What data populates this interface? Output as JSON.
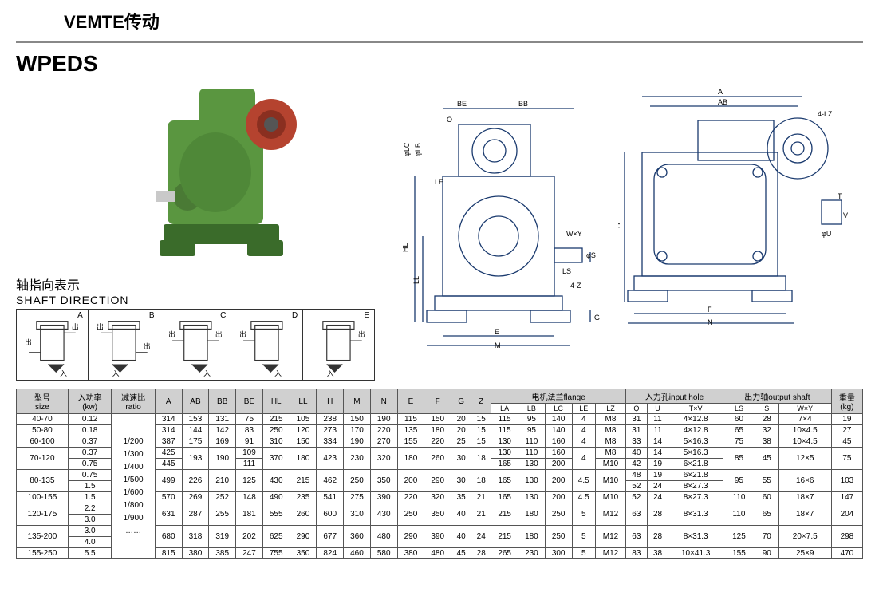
{
  "brand": "VEMTE传动",
  "model": "WPEDS",
  "shaft": {
    "label_cn": "轴指向表示",
    "label_en": "SHAFT DIRECTION",
    "letters": [
      "A",
      "B",
      "C",
      "D",
      "E"
    ],
    "in": "入",
    "out": "出"
  },
  "product_colors": {
    "body": "#5a9640",
    "flange": "#b5432f",
    "shaft": "#c9c9c9",
    "base": "#3a6b2a"
  },
  "diagram": {
    "labels_front": [
      "BE",
      "BB",
      "O",
      "φLC",
      "φLB",
      "LE",
      "HL",
      "LL",
      "W×Y",
      "LS",
      "φS",
      "4-Z",
      "G",
      "E",
      "M"
    ],
    "labels_side": [
      "A",
      "AB",
      "4-LZ",
      "H",
      "T",
      "V",
      "φU",
      "F",
      "N"
    ],
    "line_color": "#1a3a6e"
  },
  "table": {
    "headers_top": {
      "size": "型号\nsize",
      "power": "入功率\n(kw)",
      "ratio": "减速比\nratio",
      "dims": [
        "A",
        "AB",
        "BB",
        "BE",
        "HL",
        "LL",
        "H",
        "M",
        "N",
        "E",
        "F",
        "G",
        "Z"
      ],
      "flange_group": "电机法兰flange",
      "flange": [
        "LA",
        "LB",
        "LC",
        "LE",
        "LZ"
      ],
      "input_group": "入力孔input hole",
      "input": [
        "Q",
        "U",
        "T×V"
      ],
      "output_group": "出力轴output shaft",
      "output": [
        "LS",
        "S",
        "W×Y"
      ],
      "weight": "重量\n(kg)"
    },
    "ratio_block": "1/200\n1/300\n1/400\n1/500\n1/600\n1/800\n1/900\n……",
    "rows": [
      {
        "size": "40-70",
        "kw": "0.12",
        "A": "314",
        "AB": "153",
        "BB": "131",
        "BE": "75",
        "HL": "215",
        "LL": "105",
        "H": "238",
        "M": "150",
        "N": "190",
        "E": "115",
        "F": "150",
        "G": "20",
        "Z": "15",
        "LA": "115",
        "LB": "95",
        "LC": "140",
        "LE": "4",
        "LZ": "M8",
        "Q": "31",
        "U": "11",
        "TV": "4×12.8",
        "LS": "60",
        "S": "28",
        "WY": "7×4",
        "kg": "19"
      },
      {
        "size": "50-80",
        "kw": "0.18",
        "A": "314",
        "AB": "144",
        "BB": "142",
        "BE": "83",
        "HL": "250",
        "LL": "120",
        "H": "273",
        "M": "170",
        "N": "220",
        "E": "135",
        "F": "180",
        "G": "20",
        "Z": "15",
        "LA": "115",
        "LB": "95",
        "LC": "140",
        "LE": "4",
        "LZ": "M8",
        "Q": "31",
        "U": "11",
        "TV": "4×12.8",
        "LS": "65",
        "S": "32",
        "WY": "10×4.5",
        "kg": "27"
      },
      {
        "size": "60-100",
        "kw": "0.37",
        "A": "387",
        "AB": "175",
        "BB": "169",
        "BE": "91",
        "HL": "310",
        "LL": "150",
        "H": "334",
        "M": "190",
        "N": "270",
        "E": "155",
        "F": "220",
        "G": "25",
        "Z": "15",
        "LA": "130",
        "LB": "110",
        "LC": "160",
        "LE": "4",
        "LZ": "M8",
        "Q": "33",
        "U": "14",
        "TV": "5×16.3",
        "LS": "75",
        "S": "38",
        "WY": "10×4.5",
        "kg": "45"
      }
    ],
    "row_70_120": {
      "size": "70-120",
      "kw1": "0.37",
      "kw2": "0.75",
      "A1": "425",
      "A2": "445",
      "AB": "193",
      "BB": "190",
      "BE1": "109",
      "BE2": "111",
      "HL": "370",
      "LL": "180",
      "H": "423",
      "M": "230",
      "N": "320",
      "E": "180",
      "F": "260",
      "G": "30",
      "Z": "18",
      "LA1": "130",
      "LA2": "165",
      "LB1": "110",
      "LB2": "130",
      "LC1": "160",
      "LC2": "200",
      "LE": "4",
      "LZ1": "M8",
      "LZ2": "M10",
      "Q1": "40",
      "Q2": "42",
      "U1": "14",
      "U2": "19",
      "TV1": "5×16.3",
      "TV2": "6×21.8",
      "LS": "85",
      "S": "45",
      "WY": "12×5",
      "kg": "75"
    },
    "row_80_135": {
      "size": "80-135",
      "kw1": "0.75",
      "kw2": "1.5",
      "A": "499",
      "AB": "226",
      "BB": "210",
      "BE": "125",
      "HL": "430",
      "LL": "215",
      "H": "462",
      "M": "250",
      "N": "350",
      "E": "200",
      "F": "290",
      "G": "30",
      "Z": "18",
      "LA": "165",
      "LB": "130",
      "LC": "200",
      "LE": "4.5",
      "LZ": "M10",
      "Q1": "48",
      "Q2": "52",
      "U1": "19",
      "U2": "24",
      "TV1": "6×21.8",
      "TV2": "8×27.3",
      "LS": "95",
      "S": "55",
      "WY": "16×6",
      "kg": "103"
    },
    "row_100_155": {
      "size": "100-155",
      "kw": "1.5",
      "A": "570",
      "AB": "269",
      "BB": "252",
      "BE": "148",
      "HL": "490",
      "LL": "235",
      "H": "541",
      "M": "275",
      "N": "390",
      "E": "220",
      "F": "320",
      "G": "35",
      "Z": "21",
      "LA": "165",
      "LB": "130",
      "LC": "200",
      "LE": "4.5",
      "LZ": "M10",
      "Q": "52",
      "U": "24",
      "TV": "8×27.3",
      "LS": "110",
      "S": "60",
      "WY": "18×7",
      "kg": "147"
    },
    "row_120_175": {
      "size": "120-175",
      "kw1": "2.2",
      "kw2": "3.0",
      "A": "631",
      "AB": "287",
      "BB": "255",
      "BE": "181",
      "HL": "555",
      "LL": "260",
      "H": "600",
      "M": "310",
      "N": "430",
      "E": "250",
      "F": "350",
      "G": "40",
      "Z": "21",
      "LA": "215",
      "LB": "180",
      "LC": "250",
      "LE": "5",
      "LZ": "M12",
      "Q": "63",
      "U": "28",
      "TV": "8×31.3",
      "LS": "110",
      "S": "65",
      "WY": "18×7",
      "kg": "204"
    },
    "row_135_200": {
      "size": "135-200",
      "kw1": "3.0",
      "kw2": "4.0",
      "A": "680",
      "AB": "318",
      "BB": "319",
      "BE": "202",
      "HL": "625",
      "LL": "290",
      "H": "677",
      "M": "360",
      "N": "480",
      "E": "290",
      "F": "390",
      "G": "40",
      "Z": "24",
      "LA": "215",
      "LB": "180",
      "LC": "250",
      "LE": "5",
      "LZ": "M12",
      "Q": "63",
      "U": "28",
      "TV": "8×31.3",
      "LS": "125",
      "S": "70",
      "WY": "20×7.5",
      "kg": "298"
    },
    "row_155_250": {
      "size": "155-250",
      "kw": "5.5",
      "A": "815",
      "AB": "380",
      "BB": "385",
      "BE": "247",
      "HL": "755",
      "LL": "350",
      "H": "824",
      "M": "460",
      "N": "580",
      "E": "380",
      "F": "480",
      "G": "45",
      "Z": "28",
      "LA": "265",
      "LB": "230",
      "LC": "300",
      "LE": "5",
      "LZ": "M12",
      "Q": "83",
      "U": "38",
      "TV": "10×41.3",
      "LS": "155",
      "S": "90",
      "WY": "25×9",
      "kg": "470"
    }
  }
}
